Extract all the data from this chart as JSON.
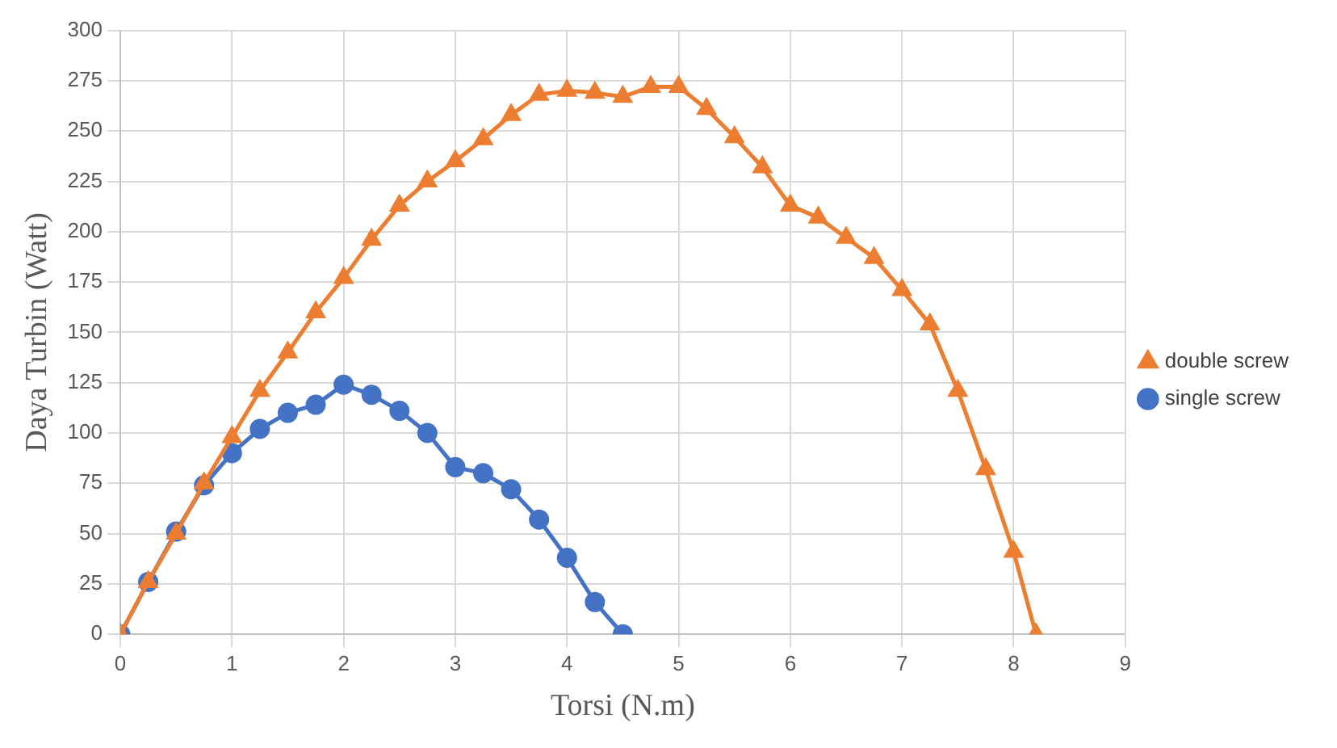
{
  "chart_data": {
    "type": "line",
    "xlabel": "Torsi (N.m)",
    "ylabel": "Daya Turbin (Watt)",
    "xlim": [
      0,
      9
    ],
    "xticks": [
      0,
      1,
      2,
      3,
      4,
      5,
      6,
      7,
      8,
      9
    ],
    "ylim": [
      0,
      300
    ],
    "yticks": [
      0,
      25,
      50,
      75,
      100,
      125,
      150,
      175,
      200,
      225,
      250,
      275,
      300
    ],
    "grid": true,
    "legend": "right",
    "series": [
      {
        "name": "single screw",
        "color": "#4472c4",
        "marker": "circle",
        "x": [
          0,
          0.25,
          0.5,
          0.75,
          1,
          1.25,
          1.5,
          1.75,
          2,
          2.25,
          2.5,
          2.75,
          3,
          3.25,
          3.5,
          3.75,
          4,
          4.25,
          4.5
        ],
        "values": [
          0,
          26,
          51,
          74,
          90,
          102,
          110,
          114,
          124,
          119,
          111,
          100,
          83,
          80,
          72,
          57,
          38,
          16,
          0
        ]
      },
      {
        "name": "double screw",
        "color": "#ed7d31",
        "marker": "triangle",
        "x": [
          0,
          0.25,
          0.5,
          0.75,
          1,
          1.25,
          1.5,
          1.75,
          2,
          2.25,
          2.5,
          2.75,
          3,
          3.25,
          3.5,
          3.75,
          4,
          4.25,
          4.5,
          4.75,
          5,
          5.25,
          5.5,
          5.75,
          6,
          6.25,
          6.5,
          6.75,
          7,
          7.25,
          7.5,
          7.75,
          8,
          8.2
        ],
        "values": [
          0,
          26,
          50,
          75,
          98,
          121,
          140,
          160,
          177,
          196,
          213,
          225,
          235,
          246,
          258,
          268,
          270,
          269,
          267,
          272,
          272,
          261,
          247,
          232,
          213,
          207,
          197,
          187,
          171,
          154,
          121,
          82,
          41,
          0
        ]
      }
    ]
  }
}
